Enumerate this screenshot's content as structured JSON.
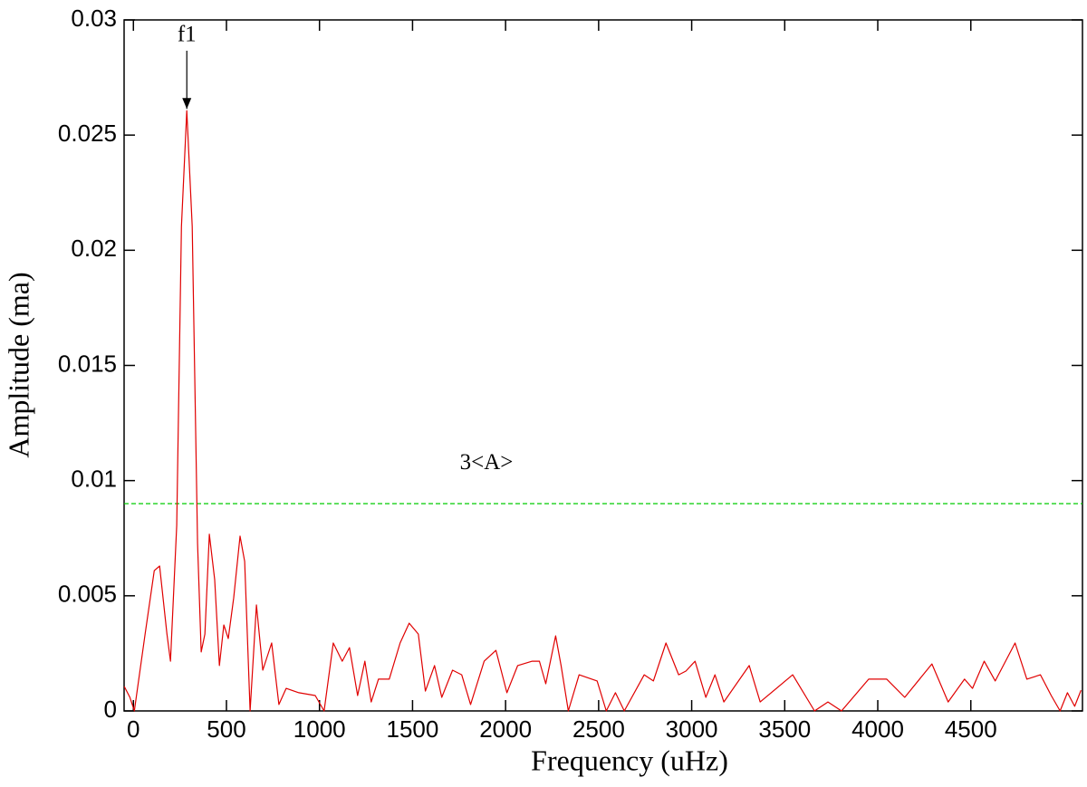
{
  "chart_data": {
    "type": "line",
    "xlabel": "Frequency (uHz)",
    "ylabel": "Amplitude (ma)",
    "x": [
      -49,
      -19,
      5,
      63,
      112,
      141,
      180,
      199,
      233,
      258,
      287,
      316,
      345,
      364,
      384,
      408,
      437,
      462,
      486,
      510,
      539,
      573,
      598,
      627,
      661,
      695,
      743,
      782,
      821,
      889,
      977,
      1025,
      1074,
      1122,
      1161,
      1205,
      1244,
      1278,
      1317,
      1375,
      1433,
      1482,
      1531,
      1569,
      1618,
      1657,
      1715,
      1764,
      1812,
      1885,
      1948,
      2007,
      2065,
      2143,
      2182,
      2216,
      2269,
      2298,
      2337,
      2395,
      2492,
      2541,
      2590,
      2638,
      2745,
      2794,
      2862,
      2930,
      2969,
      3018,
      3076,
      3125,
      3173,
      3309,
      3368,
      3543,
      3660,
      3732,
      3805,
      3951,
      4048,
      4145,
      4291,
      4378,
      4466,
      4509,
      4572,
      4631,
      4738,
      4801,
      4874,
      4932,
      4980,
      5019,
      5058,
      5092
    ],
    "values": [
      0.00106,
      0.00059,
      0,
      0.00334,
      0.00609,
      0.00629,
      0.00334,
      0.00216,
      0.00806,
      0.02103,
      0.02606,
      0.02103,
      0.00727,
      0.00256,
      0.00334,
      0.00767,
      0.0057,
      0.00197,
      0.00373,
      0.00314,
      0.00491,
      0.00759,
      0.00649,
      0,
      0.0046,
      0.00177,
      0.00295,
      0.00028,
      0.00098,
      0.00079,
      0.00067,
      0,
      0.00295,
      0.00216,
      0.00275,
      0.00067,
      0.00216,
      0.00039,
      0.00138,
      0.00138,
      0.00295,
      0.00381,
      0.00334,
      0.00086,
      0.00197,
      0.00059,
      0.00177,
      0.00157,
      0.00028,
      0.00216,
      0.00263,
      0.00079,
      0.00197,
      0.00216,
      0.00216,
      0.00118,
      0.00326,
      0.00197,
      0,
      0.00157,
      0.0013,
      0,
      0.00079,
      0,
      0.00157,
      0.0013,
      0.00295,
      0.00157,
      0.00173,
      0.00216,
      0.00059,
      0.00157,
      0.00039,
      0.00197,
      0.00039,
      0.00157,
      0,
      0.00039,
      0,
      0.00138,
      0.00138,
      0.00059,
      0.00204,
      0.00039,
      0.00138,
      0.00098,
      0.00216,
      0.0013,
      0.00295,
      0.00138,
      0.00157,
      0.00067,
      0,
      0.00079,
      0.0002,
      0.0009
    ],
    "color": "#e00000",
    "xlim": [
      -50,
      5100
    ],
    "ylim": [
      0,
      0.03
    ],
    "xticks": [
      0,
      500,
      1000,
      1500,
      2000,
      2500,
      3000,
      3500,
      4000,
      4500
    ],
    "yticks": [
      0,
      0.005,
      0.01,
      0.015,
      0.02,
      0.025,
      0.03
    ],
    "threshold": {
      "label": "3<A>",
      "value": 0.009,
      "color": "#00cc00"
    },
    "annotation": {
      "text": "f1",
      "x": 287,
      "y": 0.02606
    }
  }
}
